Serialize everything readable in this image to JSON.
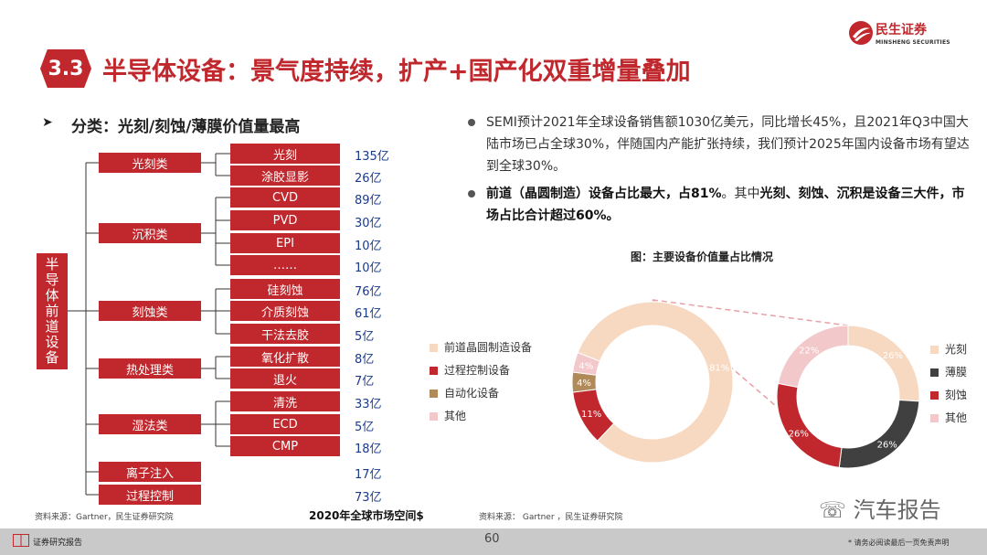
{
  "header": {
    "section_number": "3.3",
    "title": "半导体设备：景气度持续，扩产+国产化双重增量叠加",
    "logo_cn": "民生证券",
    "logo_en": "MINSHENG SECURITIES"
  },
  "left": {
    "subtitle": "分类：光刻/刻蚀/薄膜价值量最高",
    "root_label": "半导体前道设备",
    "categories": [
      "光刻类",
      "沉积类",
      "刻蚀类",
      "热处理类",
      "湿法类",
      "离子注入",
      "过程控制"
    ],
    "items": [
      {
        "name": "光刻",
        "value": "135亿"
      },
      {
        "name": "涂胶显影",
        "value": "26亿"
      },
      {
        "name": "CVD",
        "value": "89亿"
      },
      {
        "name": "PVD",
        "value": "30亿"
      },
      {
        "name": "EPI",
        "value": "10亿"
      },
      {
        "name": "……",
        "value": "10亿"
      },
      {
        "name": "硅刻蚀",
        "value": "76亿"
      },
      {
        "name": "介质刻蚀",
        "value": "61亿"
      },
      {
        "name": "干法去胶",
        "value": "5亿"
      },
      {
        "name": "氧化扩散",
        "value": "8亿"
      },
      {
        "name": "退火",
        "value": "7亿"
      },
      {
        "name": "清洗",
        "value": "33亿"
      },
      {
        "name": "ECD",
        "value": "5亿"
      },
      {
        "name": "CMP",
        "value": "18亿"
      }
    ],
    "direct_values": {
      "ion": "17亿",
      "process": "73亿"
    },
    "source": "资料来源：Gartner，民生证券研究院",
    "footnote": "2020年全球市场空间$"
  },
  "right": {
    "bullet1": "SEMI预计2021年全球设备销售额1030亿美元，同比增长45%，且2021年Q3中国大陆市场已占全球30%，伴随国内产能扩张持续，我们预计2025年国内设备市场有望达到全球30%。",
    "bullet2_bold1": "前道（晶圆制造）设备占比最大，",
    "bullet2_bold2": "占81%",
    "bullet2_text1": "。其中",
    "bullet2_bold3": "光刻、刻蚀、沉积是设备三大件，市场占比合计超过60%。",
    "figure_title": "图：主要设备价值量占比情况",
    "source": "资料来源： Gartner ，民生证券研究院"
  },
  "chart_data": [
    {
      "type": "pie",
      "variant": "donut",
      "categories": [
        "前道晶圆制造设备",
        "过程控制设备",
        "自动化设备",
        "其他"
      ],
      "values": [
        81,
        11,
        4,
        4
      ],
      "labels": [
        "81%",
        "11%",
        "4%",
        "4%"
      ],
      "colors": [
        "#f7d9c2",
        "#c0282d",
        "#b08a58",
        "#f2c8cb"
      ],
      "legend_position": "left"
    },
    {
      "type": "pie",
      "variant": "donut",
      "categories": [
        "光刻",
        "薄膜",
        "刻蚀",
        "其他"
      ],
      "values": [
        26,
        26,
        26,
        22
      ],
      "labels": [
        "26%",
        "26%",
        "26%",
        "22%"
      ],
      "colors": [
        "#f7d9c2",
        "#404040",
        "#c0282d",
        "#f2c8cb"
      ],
      "legend_position": "right"
    }
  ],
  "footer": {
    "left_text": "证券研究报告",
    "page_number": "60",
    "right_text": "* 请务必阅读最后一页免责声明",
    "watermark": "汽车报告"
  }
}
